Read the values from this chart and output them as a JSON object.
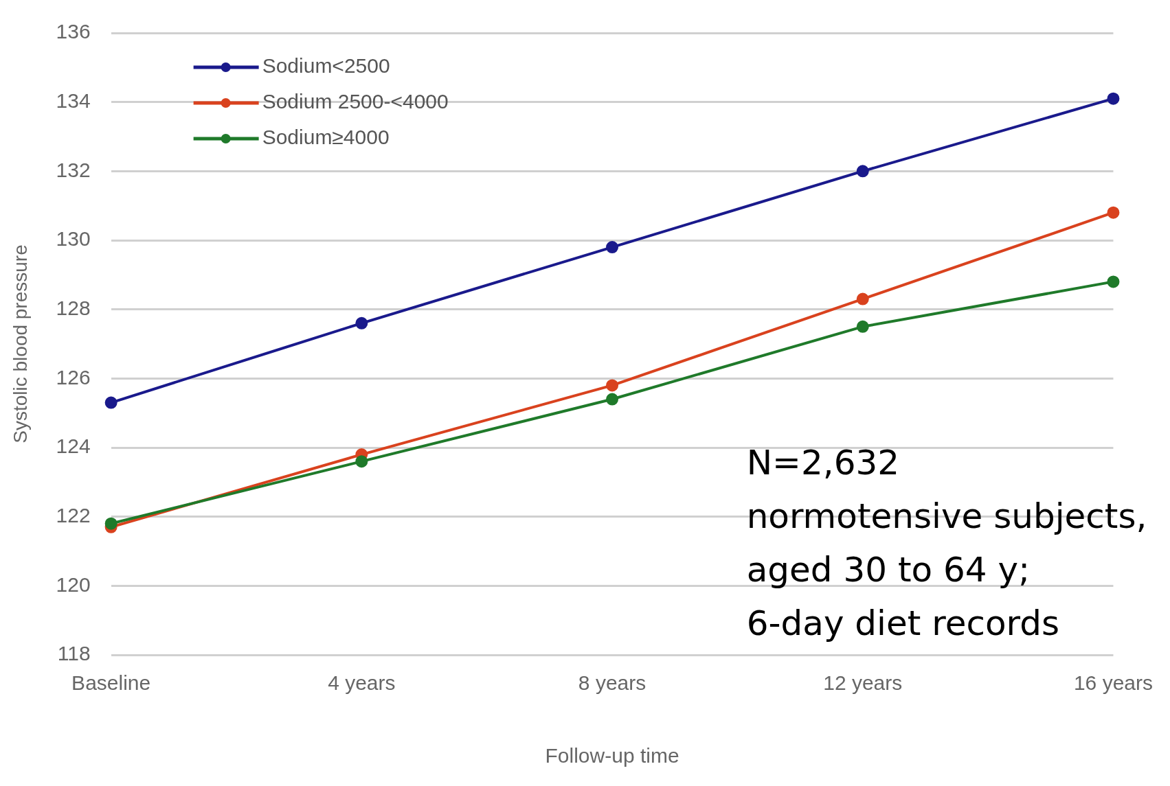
{
  "chart_data": {
    "type": "line",
    "categories": [
      "Baseline",
      "4 years",
      "8 years",
      "12 years",
      "16 years"
    ],
    "series": [
      {
        "name": "Sodium<2500",
        "color": "#1a1a8c",
        "values": [
          125.3,
          127.6,
          129.8,
          132.0,
          134.1
        ]
      },
      {
        "name": "Sodium 2500-<4000",
        "color": "#d9421e",
        "values": [
          121.7,
          123.8,
          125.8,
          128.3,
          130.8
        ]
      },
      {
        "name": "Sodium≥4000",
        "color": "#1f7a2a",
        "values": [
          121.8,
          123.6,
          125.4,
          127.5,
          128.8
        ]
      }
    ],
    "xlabel": "Follow-up time",
    "ylabel": "Systolic blood pressure",
    "ylim": [
      118,
      136
    ],
    "yticks": [
      118,
      120,
      122,
      124,
      126,
      128,
      130,
      132,
      134,
      136
    ],
    "grid": "y",
    "legend": "top left",
    "marker": "circle",
    "annotations": [
      "N=2,632\nnormotensive subjects,\naged 30 to 64 y;\n6-day diet records"
    ]
  }
}
